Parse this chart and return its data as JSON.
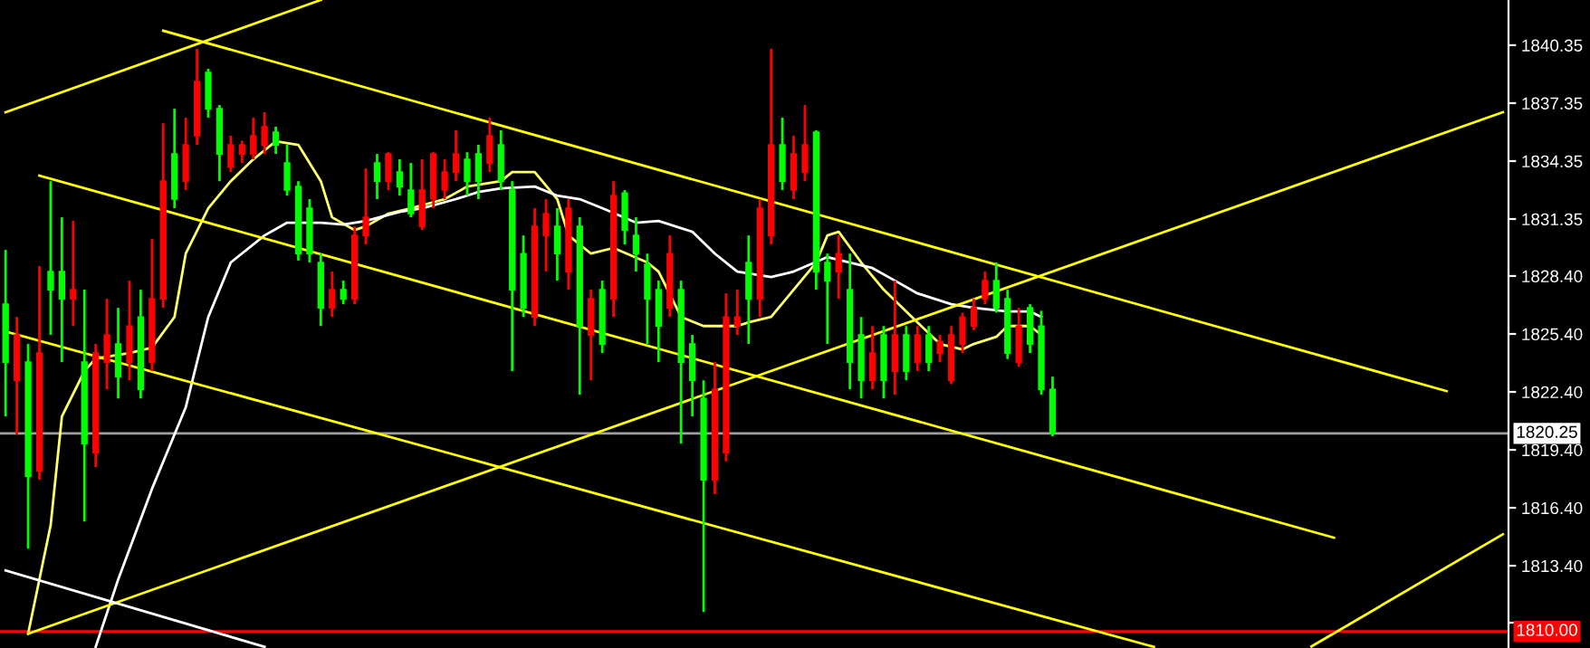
{
  "chart_data": {
    "type": "candlestick",
    "categories": [
      null,
      null,
      null,
      null,
      null,
      null,
      null,
      null,
      null,
      null,
      null,
      null,
      null,
      null,
      null,
      null,
      null,
      null,
      null,
      null,
      null,
      null,
      null,
      null,
      null,
      null,
      null,
      null,
      null,
      null,
      null,
      null,
      null,
      null,
      null,
      null,
      null,
      null,
      null,
      null,
      null,
      null,
      null,
      null,
      null,
      null,
      null,
      null,
      null,
      null,
      null,
      null,
      null,
      null,
      null,
      null,
      null,
      null,
      null,
      null,
      null,
      null,
      null,
      null,
      null,
      null,
      null,
      null,
      null,
      null,
      null,
      null,
      null,
      null,
      null,
      null,
      null,
      null,
      null,
      null,
      null,
      null,
      null,
      null,
      null,
      null,
      null,
      null,
      null,
      null,
      null,
      null,
      null,
      null,
      null,
      null,
      null,
      null,
      null,
      null,
      null,
      null,
      null,
      null,
      null,
      null,
      null,
      null,
      null,
      null,
      null,
      null,
      null,
      null,
      null,
      null,
      null,
      null,
      null,
      null,
      null,
      null,
      null,
      null,
      null,
      null,
      null,
      null,
      null,
      null,
      null,
      null,
      null,
      null
    ],
    "ohlc": [
      [
        1826.94,
        1829.75,
        1821.13,
        1823.94
      ],
      [
        1823.0,
        1826.28,
        1820.19,
        1825.35
      ],
      [
        1823.94,
        1824.88,
        1814.28,
        1818.03
      ],
      [
        1818.31,
        1828.91,
        1817.85,
        1824.41
      ],
      [
        1828.63,
        1833.31,
        1825.35,
        1827.69
      ],
      [
        1828.63,
        1831.44,
        1823.94,
        1827.22
      ],
      [
        1827.22,
        1831.25,
        1825.81,
        1827.69
      ],
      [
        1823.94,
        1827.69,
        1815.69,
        1819.72
      ],
      [
        1819.25,
        1824.88,
        1818.5,
        1824.41
      ],
      [
        1823.94,
        1827.22,
        1822.53,
        1825.35
      ],
      [
        1824.88,
        1826.75,
        1822.06,
        1823.19
      ],
      [
        1823.94,
        1828.16,
        1823.0,
        1825.81
      ],
      [
        1826.28,
        1827.69,
        1822.06,
        1822.53
      ],
      [
        1823.94,
        1830.31,
        1823.47,
        1827.22
      ],
      [
        1827.22,
        1836.31,
        1826.75,
        1833.31
      ],
      [
        1834.72,
        1837.06,
        1831.91,
        1832.38
      ],
      [
        1833.31,
        1836.6,
        1832.85,
        1835.19
      ],
      [
        1835.66,
        1840.16,
        1835.19,
        1838.47
      ],
      [
        1838.94,
        1839.13,
        1836.6,
        1837.06
      ],
      [
        1837.06,
        1837.25,
        1833.31,
        1834.72
      ],
      [
        1834.06,
        1835.66,
        1833.78,
        1835.19
      ],
      [
        1834.72,
        1835.4,
        1834.25,
        1835.19
      ],
      [
        1834.72,
        1836.6,
        1834.44,
        1835.66
      ],
      [
        1835.19,
        1836.88,
        1834.72,
        1836.13
      ],
      [
        1835.85,
        1836.13,
        1834.72,
        1835.19
      ],
      [
        1834.25,
        1835.19,
        1832.56,
        1832.85
      ],
      [
        1833.03,
        1833.31,
        1829.2,
        1829.56
      ],
      [
        1831.91,
        1832.38,
        1829.1,
        1829.56
      ],
      [
        1829.1,
        1829.56,
        1825.81,
        1826.75
      ],
      [
        1826.75,
        1828.63,
        1826.28,
        1827.69
      ],
      [
        1827.69,
        1828.16,
        1826.94,
        1827.22
      ],
      [
        1827.22,
        1830.97,
        1826.94,
        1830.5
      ],
      [
        1830.5,
        1833.97,
        1830.03,
        1831.44
      ],
      [
        1834.25,
        1834.72,
        1832.38,
        1833.31
      ],
      [
        1833.31,
        1834.81,
        1832.85,
        1834.72
      ],
      [
        1833.78,
        1834.44,
        1832.56,
        1833.03
      ],
      [
        1832.85,
        1834.25,
        1831.44,
        1831.63
      ],
      [
        1830.97,
        1834.44,
        1830.78,
        1832.85
      ],
      [
        1832.38,
        1834.81,
        1831.91,
        1834.72
      ],
      [
        1832.85,
        1834.44,
        1832.38,
        1833.78
      ],
      [
        1833.78,
        1835.94,
        1833.31,
        1834.72
      ],
      [
        1834.44,
        1834.81,
        1832.56,
        1833.31
      ],
      [
        1834.72,
        1835.19,
        1832.38,
        1833.31
      ],
      [
        1834.25,
        1836.6,
        1833.78,
        1835.66
      ],
      [
        1835.19,
        1835.94,
        1832.85,
        1833.31
      ],
      [
        1832.85,
        1833.31,
        1823.47,
        1827.69
      ],
      [
        1829.56,
        1830.5,
        1826.28,
        1826.75
      ],
      [
        1826.28,
        1831.91,
        1825.81,
        1830.97
      ],
      [
        1830.5,
        1832.38,
        1828.63,
        1831.63
      ],
      [
        1830.97,
        1831.91,
        1828.16,
        1829.56
      ],
      [
        1828.63,
        1832.38,
        1827.69,
        1831.91
      ],
      [
        1830.97,
        1831.44,
        1822.25,
        1825.81
      ],
      [
        1825.35,
        1827.69,
        1823.0,
        1827.22
      ],
      [
        1827.69,
        1828.16,
        1824.41,
        1824.88
      ],
      [
        1827.22,
        1833.31,
        1826.28,
        1832.56
      ],
      [
        1832.69,
        1832.85,
        1830.03,
        1830.78
      ],
      [
        1830.5,
        1831.44,
        1828.63,
        1829.56
      ],
      [
        1829.0,
        1829.56,
        1824.88,
        1827.22
      ],
      [
        1827.69,
        1828.16,
        1823.94,
        1825.81
      ],
      [
        1826.75,
        1830.5,
        1826.28,
        1829.56
      ],
      [
        1827.69,
        1828.16,
        1819.72,
        1823.94
      ],
      [
        1824.88,
        1825.35,
        1821.13,
        1823.0
      ],
      [
        1822.06,
        1823.0,
        1811.0,
        1817.85
      ],
      [
        1817.85,
        1823.94,
        1817.1,
        1822.53
      ],
      [
        1819.25,
        1827.5,
        1818.8,
        1826.28
      ],
      [
        1825.81,
        1827.69,
        1825.35,
        1826.28
      ],
      [
        1829.1,
        1830.5,
        1824.88,
        1827.22
      ],
      [
        1827.22,
        1832.38,
        1826.28,
        1831.91
      ],
      [
        1830.5,
        1840.16,
        1830.03,
        1835.19
      ],
      [
        1835.19,
        1836.6,
        1832.85,
        1833.31
      ],
      [
        1832.85,
        1835.66,
        1832.38,
        1834.72
      ],
      [
        1833.78,
        1837.25,
        1833.31,
        1835.19
      ],
      [
        1835.85,
        1835.94,
        1827.69,
        1828.63
      ],
      [
        1829.1,
        1829.56,
        1824.88,
        1828.16
      ],
      [
        1828.63,
        1830.5,
        1827.22,
        1829.56
      ],
      [
        1827.69,
        1829.56,
        1822.53,
        1823.94
      ],
      [
        1825.35,
        1826.28,
        1822.06,
        1823.0
      ],
      [
        1823.0,
        1825.81,
        1822.53,
        1824.41
      ],
      [
        1825.35,
        1825.81,
        1822.06,
        1823.0
      ],
      [
        1823.47,
        1828.16,
        1822.25,
        1825.35
      ],
      [
        1825.35,
        1825.81,
        1823.0,
        1823.47
      ],
      [
        1823.94,
        1825.81,
        1823.47,
        1825.35
      ],
      [
        1825.35,
        1825.81,
        1823.47,
        1823.94
      ],
      [
        1824.41,
        1825.35,
        1823.94,
        1825.0
      ],
      [
        1823.0,
        1825.81,
        1822.8,
        1825.35
      ],
      [
        1824.88,
        1826.5,
        1824.41,
        1826.28
      ],
      [
        1825.81,
        1827.22,
        1825.6,
        1826.75
      ],
      [
        1827.22,
        1828.63,
        1826.94,
        1828.16
      ],
      [
        1828.16,
        1829.1,
        1826.5,
        1826.75
      ],
      [
        1827.22,
        1827.69,
        1824.1,
        1824.41
      ],
      [
        1823.94,
        1826.75,
        1823.7,
        1825.81
      ],
      [
        1826.75,
        1826.94,
        1824.41,
        1824.88
      ],
      [
        1825.81,
        1826.6,
        1822.25,
        1822.53
      ],
      [
        1822.53,
        1823.19,
        1820.1,
        1820.25
      ],
      null,
      null,
      null,
      null,
      null,
      null,
      null,
      null,
      null,
      null,
      null,
      null,
      null,
      null,
      null,
      null,
      null,
      null,
      null,
      null,
      null,
      null,
      null,
      null,
      null,
      null,
      null,
      null,
      null,
      null,
      null,
      null,
      null,
      null,
      null,
      null,
      null,
      null,
      null,
      null
    ],
    "colors": [
      "#00ff00",
      "#ff0000",
      "#00ff00",
      "#ff0000",
      "#00ff00",
      "#00ff00",
      "#ff0000",
      "#00ff00",
      "#ff0000",
      "#ff0000",
      "#00ff00",
      "#ff0000",
      "#00ff00",
      "#ff0000",
      "#ff0000",
      "#00ff00",
      "#ff0000",
      "#ff0000",
      "#00ff00",
      "#00ff00",
      "#ff0000",
      "#ff0000",
      "#ff0000",
      "#ff0000",
      "#00ff00",
      "#00ff00",
      "#00ff00",
      "#00ff00",
      "#00ff00",
      "#ff0000",
      "#00ff00",
      "#ff0000",
      "#ff0000",
      "#00ff00",
      "#ff0000",
      "#00ff00",
      "#00ff00",
      "#ff0000",
      "#ff0000",
      "#ff0000",
      "#ff0000",
      "#00ff00",
      "#00ff00",
      "#ff0000",
      "#00ff00",
      "#00ff00",
      "#00ff00",
      "#ff0000",
      "#ff0000",
      "#00ff00",
      "#ff0000",
      "#00ff00",
      "#ff0000",
      "#00ff00",
      "#ff0000",
      "#00ff00",
      "#00ff00",
      "#00ff00",
      "#00ff00",
      "#ff0000",
      "#00ff00",
      "#00ff00",
      "#00ff00",
      "#ff0000",
      "#ff0000",
      "#ff0000",
      "#00ff00",
      "#ff0000",
      "#ff0000",
      "#00ff00",
      "#ff0000",
      "#ff0000",
      "#00ff00",
      "#00ff00",
      "#ff0000",
      "#00ff00",
      "#00ff00",
      "#ff0000",
      "#00ff00",
      "#ff0000",
      "#00ff00",
      "#ff0000",
      "#00ff00",
      "#ff0000",
      "#ff0000",
      "#ff0000",
      "#ff0000",
      "#ff0000",
      "#00ff00",
      "#00ff00",
      "#ff0000",
      "#00ff00",
      "#00ff00",
      "#00ff00",
      null,
      null,
      null,
      null,
      null,
      null,
      null,
      null,
      null,
      null,
      null,
      null,
      null,
      null,
      null,
      null,
      null,
      null,
      null,
      null,
      null,
      null,
      null,
      null,
      null,
      null,
      null,
      null,
      null,
      null,
      null,
      null,
      null,
      null,
      null,
      null,
      null,
      null,
      null,
      null
    ],
    "series": [
      {
        "type": "line",
        "color": "#ffff66",
        "values": [
          null,
          null,
          1809.88,
          null,
          1815.5,
          1821.13,
          null,
          1823.47,
          1824.13,
          null,
          null,
          1824.41,
          null,
          1824.69,
          null,
          1826.28,
          1829.56,
          null,
          1831.91,
          null,
          1833.31,
          null,
          1834.44,
          null,
          1835.38,
          null,
          1835.19,
          null,
          1833.31,
          1831.44,
          null,
          1830.78,
          1830.97,
          null,
          1831.63,
          null,
          1831.91,
          null,
          null,
          1832.38,
          null,
          1833.03,
          null,
          null,
          1833.31,
          1833.78,
          null,
          1833.78,
          null,
          1832.38,
          1830.5,
          null,
          1829.56,
          null,
          1829.85,
          null,
          null,
          1829.1,
          1828.63,
          null,
          1826.28,
          null,
          1825.81,
          null,
          null,
          1825.81,
          1826.0,
          null,
          1826.28,
          null,
          1827.69,
          null,
          1829.1,
          1830.5,
          1830.69,
          null,
          1829.1,
          null,
          1827.69,
          null,
          null,
          1826.0,
          null,
          1824.88,
          null,
          1824.6,
          1824.88,
          null,
          1825.25,
          1825.81,
          null,
          1825.81,
          1825.35,
          null,
          null,
          null,
          null,
          null,
          null,
          null,
          null,
          null,
          null,
          null,
          null,
          null,
          null,
          null,
          null,
          null,
          null,
          null,
          null,
          null,
          null,
          null,
          null,
          null,
          null,
          null,
          null,
          null,
          null,
          null,
          null,
          null,
          null,
          null,
          null,
          null,
          null,
          null,
          null,
          null
        ]
      },
      {
        "type": "line",
        "color": "#ffffff",
        "values": [
          null,
          null,
          null,
          null,
          null,
          null,
          null,
          null,
          1809.2,
          null,
          1812.69,
          null,
          null,
          1817.38,
          null,
          null,
          1821.6,
          null,
          1826.28,
          null,
          1829.1,
          null,
          null,
          1830.5,
          null,
          1831.16,
          null,
          null,
          1831.16,
          null,
          1831.06,
          null,
          1831.25,
          null,
          null,
          1831.72,
          null,
          1831.91,
          null,
          null,
          1832.38,
          null,
          1832.75,
          null,
          1832.94,
          null,
          null,
          1833.03,
          null,
          1832.56,
          null,
          1832.38,
          null,
          1831.91,
          null,
          null,
          1831.16,
          null,
          1831.25,
          null,
          null,
          1830.69,
          null,
          1829.56,
          null,
          1828.63,
          null,
          null,
          1828.35,
          null,
          1828.63,
          null,
          null,
          1829.38,
          null,
          1829.1,
          null,
          1828.81,
          null,
          1828.16,
          null,
          1827.5,
          null,
          null,
          1826.94,
          null,
          1826.75,
          null,
          null,
          1826.56,
          null,
          1826.56,
          1826.28,
          null,
          null,
          null,
          null,
          null,
          null,
          null,
          null,
          null,
          null,
          null,
          null,
          null,
          null,
          null,
          null,
          null,
          null,
          null,
          null,
          null,
          null,
          null,
          null,
          null,
          null,
          null,
          null,
          null,
          null,
          null,
          null,
          null,
          null,
          null,
          null,
          null,
          null,
          null,
          null,
          null
        ]
      },
      {
        "type": "line",
        "color": "#ffff00",
        "values": [
          1836.88,
          null,
          null,
          null,
          null,
          null,
          null,
          null,
          null,
          null,
          null,
          null,
          null,
          null,
          null,
          null,
          null,
          null,
          null,
          null,
          null,
          null,
          null,
          null,
          null,
          null,
          null,
          null,
          1842.69,
          null,
          null,
          null,
          null,
          null,
          null,
          null,
          null,
          null,
          null,
          null,
          null,
          null,
          null,
          null,
          null,
          null,
          null,
          null,
          null,
          null,
          null,
          null,
          null,
          null,
          null,
          null,
          null,
          null,
          null,
          null,
          null,
          null,
          null,
          null,
          null,
          null,
          null,
          null,
          null,
          null,
          null,
          null,
          null,
          null,
          null,
          null,
          null,
          null,
          null,
          null,
          null,
          null,
          null,
          null,
          null,
          null,
          null,
          null,
          null,
          null,
          null,
          null,
          null,
          null,
          null,
          null,
          null,
          null,
          null,
          null,
          null,
          null,
          null,
          null,
          null,
          null,
          null,
          null,
          null,
          null,
          null,
          null,
          null,
          null,
          null,
          null,
          null,
          null,
          null,
          null,
          null,
          null,
          null,
          null,
          null,
          null,
          null,
          null,
          null,
          null,
          null,
          null,
          null,
          null
        ]
      },
      {
        "type": "line",
        "color": "#ffff00",
        "values": [
          null,
          null,
          null,
          null,
          null,
          null,
          null,
          null,
          null,
          null,
          null,
          null,
          null,
          null,
          1841.1,
          null,
          null,
          null,
          null,
          null,
          null,
          null,
          null,
          null,
          null,
          null,
          null,
          null,
          null,
          null,
          null,
          null,
          null,
          null,
          null,
          null,
          null,
          null,
          null,
          null,
          null,
          null,
          null,
          null,
          null,
          null,
          null,
          null,
          null,
          null,
          null,
          null,
          null,
          null,
          null,
          null,
          null,
          null,
          null,
          null,
          null,
          null,
          null,
          null,
          null,
          null,
          null,
          null,
          null,
          null,
          null,
          null,
          null,
          null,
          null,
          null,
          null,
          null,
          null,
          null,
          null,
          null,
          null,
          null,
          null,
          null,
          null,
          null,
          null,
          null,
          null,
          null,
          null,
          null,
          null,
          null,
          null,
          null,
          null,
          null,
          null,
          null,
          null,
          null,
          null,
          null,
          null,
          null,
          null,
          null,
          null,
          null,
          null,
          null,
          null,
          null,
          null,
          null,
          null,
          null,
          null,
          null,
          null,
          null,
          null,
          null,
          null,
          null,
          1822.44,
          null,
          null,
          null,
          null,
          null
        ]
      },
      {
        "type": "line",
        "color": "#ffff00",
        "values": [
          null,
          null,
          null,
          1833.6,
          null,
          null,
          null,
          null,
          null,
          null,
          null,
          null,
          null,
          null,
          null,
          null,
          null,
          null,
          null,
          null,
          null,
          null,
          null,
          null,
          null,
          null,
          null,
          null,
          null,
          null,
          null,
          null,
          null,
          null,
          null,
          null,
          null,
          null,
          null,
          null,
          null,
          null,
          null,
          null,
          null,
          null,
          null,
          null,
          null,
          null,
          null,
          null,
          null,
          null,
          null,
          null,
          null,
          null,
          null,
          null,
          null,
          null,
          null,
          null,
          null,
          null,
          null,
          null,
          null,
          null,
          null,
          null,
          null,
          null,
          null,
          null,
          null,
          null,
          null,
          null,
          null,
          null,
          null,
          null,
          null,
          null,
          null,
          null,
          null,
          null,
          null,
          null,
          null,
          null,
          null,
          null,
          null,
          null,
          null,
          null,
          null,
          null,
          null,
          null,
          null,
          null,
          null,
          null,
          null,
          null,
          null,
          null,
          null,
          null,
          null,
          null,
          null,
          null,
          1814.85,
          null,
          null,
          null,
          null,
          null,
          null,
          null,
          null,
          null,
          null,
          null,
          null,
          null,
          null,
          null
        ]
      },
      {
        "type": "line",
        "color": "#ffff00",
        "values": [
          1825.53,
          null,
          null,
          null,
          null,
          null,
          null,
          null,
          null,
          null,
          null,
          null,
          null,
          null,
          null,
          null,
          null,
          null,
          null,
          null,
          null,
          null,
          null,
          null,
          null,
          null,
          null,
          null,
          null,
          null,
          null,
          null,
          null,
          null,
          null,
          null,
          null,
          null,
          null,
          null,
          null,
          null,
          null,
          null,
          null,
          null,
          null,
          null,
          null,
          null,
          null,
          null,
          null,
          null,
          null,
          null,
          null,
          null,
          null,
          null,
          null,
          null,
          null,
          null,
          null,
          null,
          null,
          null,
          null,
          null,
          null,
          null,
          null,
          null,
          null,
          null,
          null,
          null,
          null,
          null,
          null,
          null,
          null,
          null,
          null,
          null,
          null,
          null,
          null,
          null,
          null,
          null,
          null,
          null,
          null,
          null,
          null,
          null,
          null,
          null,
          null,
          null,
          1809.2,
          null,
          null,
          null,
          null,
          null,
          null,
          null,
          null,
          null,
          null,
          null,
          null,
          null,
          null,
          null,
          null,
          null,
          null,
          null,
          null,
          null,
          null,
          null,
          null,
          null,
          null,
          null,
          null,
          null,
          null,
          null
        ]
      },
      {
        "type": "line",
        "color": "#ffff00",
        "values": [
          null,
          null,
          1809.88,
          null,
          null,
          null,
          null,
          null,
          null,
          null,
          null,
          null,
          null,
          null,
          null,
          null,
          null,
          null,
          null,
          null,
          null,
          null,
          null,
          null,
          null,
          null,
          null,
          null,
          null,
          null,
          null,
          null,
          null,
          null,
          null,
          null,
          null,
          null,
          null,
          null,
          null,
          null,
          null,
          null,
          null,
          null,
          null,
          null,
          null,
          null,
          null,
          null,
          null,
          null,
          null,
          null,
          null,
          null,
          null,
          null,
          null,
          null,
          null,
          null,
          null,
          null,
          null,
          null,
          null,
          null,
          null,
          null,
          null,
          null,
          null,
          null,
          null,
          null,
          null,
          null,
          null,
          null,
          null,
          null,
          null,
          null,
          null,
          null,
          null,
          null,
          null,
          null,
          null,
          null,
          null,
          null,
          null,
          null,
          null,
          null,
          null,
          null,
          null,
          null,
          null,
          null,
          null,
          null,
          null,
          null,
          null,
          null,
          null,
          null,
          null,
          null,
          null,
          null,
          null,
          null,
          null,
          null,
          null,
          null,
          null,
          null,
          null,
          null,
          null,
          null,
          null,
          null,
          null,
          1836.88
        ]
      },
      {
        "type": "line",
        "color": "#ffff00",
        "values": [
          null,
          null,
          null,
          null,
          null,
          null,
          null,
          null,
          null,
          null,
          null,
          null,
          null,
          null,
          null,
          null,
          null,
          null,
          null,
          null,
          null,
          null,
          null,
          null,
          null,
          null,
          null,
          null,
          null,
          null,
          null,
          null,
          null,
          null,
          null,
          null,
          null,
          null,
          null,
          null,
          null,
          null,
          null,
          null,
          null,
          null,
          null,
          null,
          null,
          null,
          null,
          null,
          null,
          null,
          null,
          null,
          null,
          null,
          null,
          null,
          null,
          null,
          null,
          null,
          null,
          null,
          null,
          null,
          null,
          null,
          null,
          null,
          null,
          null,
          null,
          null,
          null,
          null,
          null,
          null,
          null,
          null,
          null,
          null,
          null,
          null,
          null,
          null,
          null,
          null,
          null,
          null,
          null,
          null,
          null,
          null,
          null,
          null,
          null,
          null,
          null,
          null,
          null,
          null,
          null,
          null,
          null,
          null,
          null,
          null,
          null,
          null,
          null,
          null,
          null,
          null,
          1809.22,
          null,
          null,
          null,
          null,
          null,
          null,
          null,
          null,
          null,
          null,
          null,
          null,
          null,
          null,
          null,
          null,
          1815.03
        ]
      },
      {
        "type": "line",
        "color": "#ffffff",
        "values": [
          1813.16,
          null,
          null,
          null,
          null,
          null,
          null,
          null,
          null,
          null,
          null,
          null,
          null,
          null,
          null,
          null,
          null,
          null,
          null,
          null,
          null,
          null,
          null,
          1809.2,
          null,
          null,
          null,
          null,
          null,
          null,
          null,
          null,
          null,
          null,
          null,
          null,
          null,
          null,
          null,
          null,
          null,
          null,
          null,
          null,
          null,
          null,
          null,
          null,
          null,
          null,
          null,
          null,
          null,
          null,
          null,
          null,
          null,
          null,
          null,
          null,
          null,
          null,
          null,
          null,
          null,
          null,
          null,
          null,
          null,
          null,
          null,
          null,
          null,
          null,
          null,
          null,
          null,
          null,
          null,
          null,
          null,
          null,
          null,
          null,
          null,
          null,
          null,
          null,
          null,
          null,
          null,
          null,
          null,
          null,
          null,
          null,
          null,
          null,
          null,
          null,
          null,
          null,
          null,
          null,
          null,
          null,
          null,
          null,
          null,
          null,
          null,
          null,
          null,
          null,
          null,
          null,
          null,
          null,
          null,
          null,
          null,
          null,
          null,
          null,
          null,
          null,
          null,
          null,
          null,
          null,
          null,
          null,
          null,
          null
        ]
      }
    ],
    "ref_lines": [
      {
        "axis": "y",
        "value": 1820.25,
        "label": "1820.25",
        "color": "#a0a0a4"
      },
      {
        "axis": "y",
        "value": 1810.0,
        "label": "1810.00",
        "color": "#ff0000"
      }
    ],
    "ylim": [
      1809.14,
      1842.69
    ],
    "yticks": [
      1840.35,
      1837.35,
      1834.35,
      1831.35,
      {
        "value": 1828.4,
        "label": "1828.40"
      },
      {
        "value": 1825.4,
        "label": "1825.40"
      },
      {
        "value": 1822.4,
        "label": "1822.40"
      },
      {
        "value": 1819.4,
        "label": "1819.40"
      },
      {
        "value": 1816.4,
        "label": "1816.40"
      },
      {
        "value": 1813.4,
        "label": "1813.40"
      },
      {
        "value": 1810.45,
        "label": null
      }
    ],
    "tick_labels": "y",
    "grid": false
  }
}
